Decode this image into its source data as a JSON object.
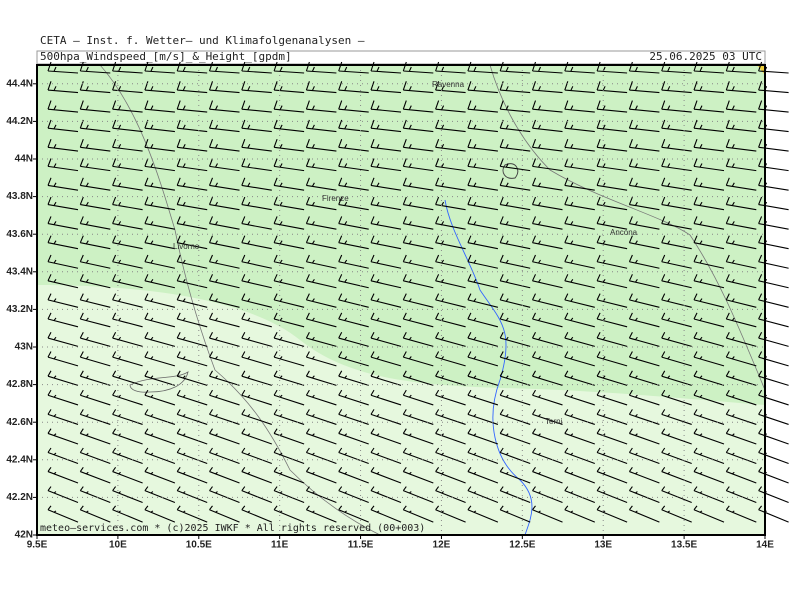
{
  "map": {
    "header": "CETA – Inst. f. Wetter– und Klimafolgenanalysen –",
    "title": "500hpa_Windspeed_[m/s]_&_Height_[gpdm]",
    "date": "25.06.2025 03 UTC",
    "footer": "meteo–services.com * (c)2025 IWKF * All rights reserved (00+003)",
    "xlim": [
      9.5,
      14
    ],
    "ylim": [
      42,
      44.5
    ],
    "xticks": [
      {
        "value": 9.5,
        "label": "9.5E"
      },
      {
        "value": 10,
        "label": "10E"
      },
      {
        "value": 10.5,
        "label": "10.5E"
      },
      {
        "value": 11,
        "label": "11E"
      },
      {
        "value": 11.5,
        "label": "11.5E"
      },
      {
        "value": 12,
        "label": "12E"
      },
      {
        "value": 12.5,
        "label": "12.5E"
      },
      {
        "value": 13,
        "label": "13E"
      },
      {
        "value": 13.5,
        "label": "13.5E"
      },
      {
        "value": 14,
        "label": "14E"
      }
    ],
    "yticks": [
      {
        "value": 42,
        "label": "42N"
      },
      {
        "value": 42.2,
        "label": "42.2N"
      },
      {
        "value": 42.4,
        "label": "42.4N"
      },
      {
        "value": 42.6,
        "label": "42.6N"
      },
      {
        "value": 42.8,
        "label": "42.8N"
      },
      {
        "value": 43,
        "label": "43N"
      },
      {
        "value": 43.2,
        "label": "43.2N"
      },
      {
        "value": 43.4,
        "label": "43.4N"
      },
      {
        "value": 43.6,
        "label": "43.6N"
      },
      {
        "value": 43.8,
        "label": "43.8N"
      },
      {
        "value": 44,
        "label": "44N"
      },
      {
        "value": 44.2,
        "label": "44.2N"
      },
      {
        "value": 44.4,
        "label": "44.4N"
      }
    ],
    "cities": [
      "Ravenna",
      "Firenze",
      "Livorno",
      "Ancona",
      "Terni"
    ]
  }
}
